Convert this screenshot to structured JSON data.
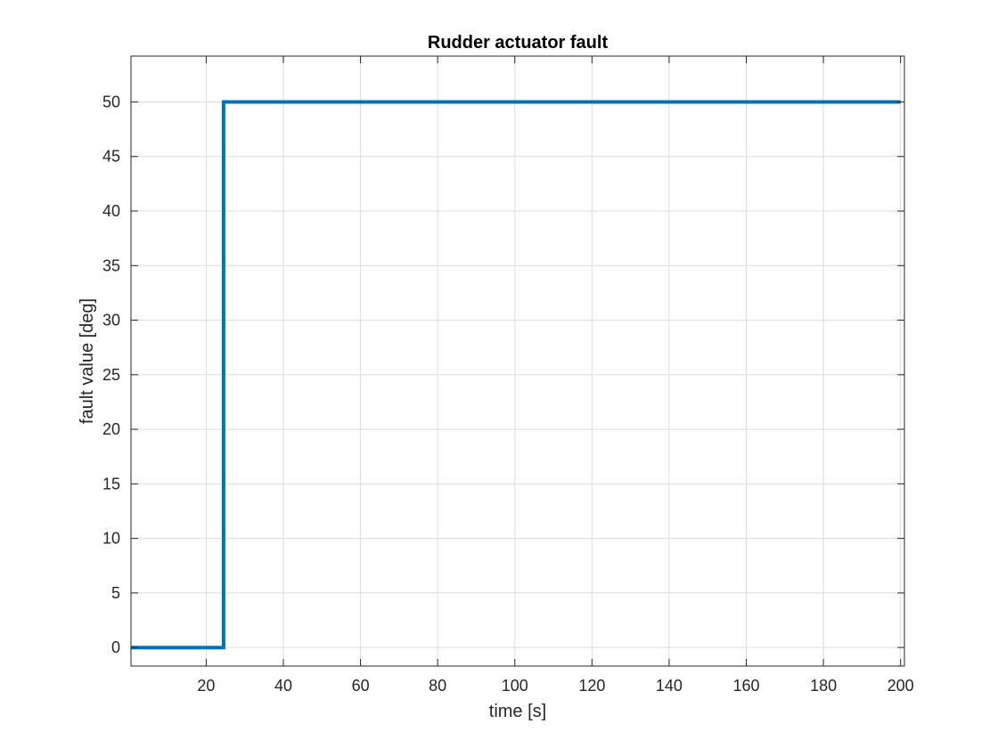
{
  "chart_data": {
    "type": "line",
    "title": "Rudder actuator fault",
    "xlabel": "time [s]",
    "ylabel": "fault value [deg]",
    "xlim": [
      0.5,
      201
    ],
    "ylim": [
      -1.7,
      54.2
    ],
    "xticks": [
      20,
      40,
      60,
      80,
      100,
      120,
      140,
      160,
      180,
      200
    ],
    "yticks": [
      0,
      5,
      10,
      15,
      20,
      25,
      30,
      35,
      40,
      45,
      50
    ],
    "grid": true,
    "series": [
      {
        "color": "#0072BD",
        "x": [
          0.5,
          24.5,
          24.5,
          200
        ],
        "y": [
          0,
          0,
          50,
          50
        ]
      }
    ]
  }
}
